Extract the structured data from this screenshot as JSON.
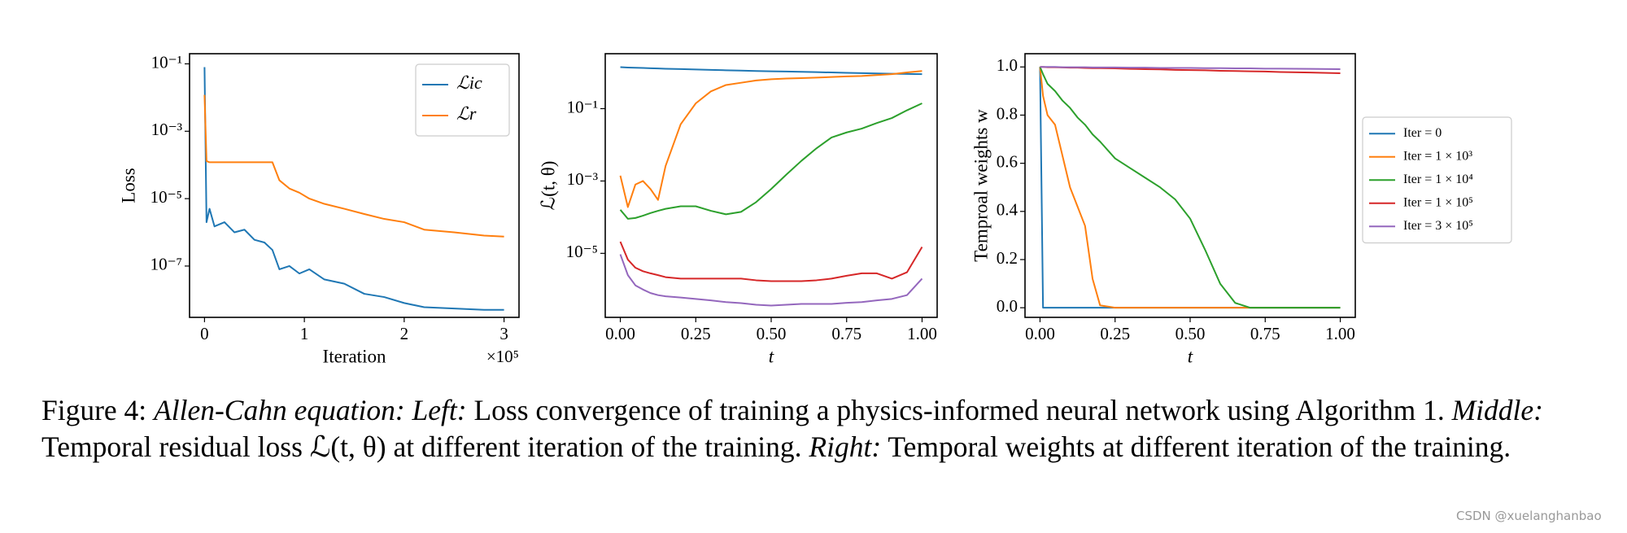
{
  "chart_data": [
    {
      "type": "line",
      "yscale": "log",
      "legend": "upper right",
      "xlabel": "Iteration",
      "ylabel": "Loss",
      "x_offset_label": "×10⁵",
      "x": [
        0,
        0.02,
        0.05,
        0.1,
        0.2,
        0.3,
        0.4,
        0.5,
        0.6,
        0.68,
        0.75,
        0.85,
        0.95,
        1.05,
        1.2,
        1.4,
        1.6,
        1.8,
        2.0,
        2.2,
        2.5,
        2.8,
        3.0
      ],
      "series": [
        {
          "name": "ℒic",
          "color": "#1f77b4",
          "values": [
            0.08,
            2e-06,
            5e-06,
            1.5e-06,
            2e-06,
            1e-06,
            1.2e-06,
            6e-07,
            5e-07,
            3e-07,
            8e-08,
            1e-07,
            6e-08,
            8e-08,
            4e-08,
            3e-08,
            1.5e-08,
            1.2e-08,
            8e-09,
            6e-09,
            5.5e-09,
            5e-09,
            5e-09
          ]
        },
        {
          "name": "ℒr",
          "color": "#ff7f0e",
          "values": [
            0.012,
            0.00013,
            0.00012,
            0.00012,
            0.00012,
            0.00012,
            0.00012,
            0.00012,
            0.00012,
            0.00012,
            3.5e-05,
            2e-05,
            1.5e-05,
            1e-05,
            7e-06,
            5e-06,
            3.5e-06,
            2.5e-06,
            2e-06,
            1.2e-06,
            1e-06,
            8e-07,
            7.5e-07
          ]
        }
      ],
      "xlim": [
        -0.15,
        3.15
      ],
      "ylim": [
        3e-09,
        0.2
      ],
      "xticks": [
        0,
        1,
        2,
        3
      ],
      "yticks": [
        {
          "value": 0.1,
          "label": "10⁻¹"
        },
        {
          "value": 0.001,
          "label": "10⁻³"
        },
        {
          "value": 1e-05,
          "label": "10⁻⁵"
        },
        {
          "value": 1e-07,
          "label": "10⁻⁷"
        }
      ]
    },
    {
      "type": "line",
      "yscale": "log",
      "xlabel": "t",
      "ylabel": "ℒ(t, θ)",
      "x": [
        0,
        0.025,
        0.05,
        0.075,
        0.1,
        0.125,
        0.15,
        0.2,
        0.25,
        0.3,
        0.35,
        0.4,
        0.45,
        0.5,
        0.55,
        0.6,
        0.65,
        0.7,
        0.75,
        0.8,
        0.85,
        0.9,
        0.95,
        1.0
      ],
      "series": [
        {
          "color": "#1f77b4",
          "values": [
            1.4,
            1.37,
            1.35,
            1.33,
            1.31,
            1.29,
            1.27,
            1.24,
            1.21,
            1.18,
            1.15,
            1.13,
            1.1,
            1.08,
            1.06,
            1.04,
            1.02,
            1.0,
            0.98,
            0.96,
            0.94,
            0.92,
            0.91,
            0.9
          ]
        },
        {
          "color": "#ff7f0e",
          "values": [
            0.0014,
            0.00019,
            0.0008,
            0.001,
            0.0006,
            0.0003,
            0.0026,
            0.037,
            0.14,
            0.3,
            0.45,
            0.52,
            0.6,
            0.65,
            0.68,
            0.7,
            0.72,
            0.75,
            0.78,
            0.8,
            0.85,
            0.9,
            1.0,
            1.1
          ]
        },
        {
          "color": "#2ca02c",
          "values": [
            0.00016,
            9e-05,
            9.5e-05,
            0.00011,
            0.00013,
            0.00015,
            0.00017,
            0.0002,
            0.0002,
            0.00015,
            0.00012,
            0.00014,
            0.00026,
            0.0006,
            0.0015,
            0.0036,
            0.008,
            0.016,
            0.022,
            0.028,
            0.04,
            0.055,
            0.09,
            0.14
          ]
        },
        {
          "color": "#d62728",
          "values": [
            2.1e-05,
            6.7e-06,
            4e-06,
            3.2e-06,
            2.8e-06,
            2.5e-06,
            2.2e-06,
            2e-06,
            2e-06,
            2e-06,
            2e-06,
            2e-06,
            1.8e-06,
            1.7e-06,
            1.7e-06,
            1.7e-06,
            1.8e-06,
            2e-06,
            2.4e-06,
            2.8e-06,
            2.8e-06,
            2e-06,
            3e-06,
            1.5e-05
          ]
        },
        {
          "color": "#9467bd",
          "values": [
            9.4e-06,
            2.5e-06,
            1.3e-06,
            1e-06,
            8e-07,
            7e-07,
            6.5e-07,
            6e-07,
            5.5e-07,
            5e-07,
            4.5e-07,
            4.2e-07,
            3.8e-07,
            3.6e-07,
            3.8e-07,
            4e-07,
            4e-07,
            4e-07,
            4.3e-07,
            4.5e-07,
            5e-07,
            5.5e-07,
            7e-07,
            2e-06
          ]
        }
      ],
      "xlim": [
        -0.05,
        1.05
      ],
      "ylim": [
        1.7e-07,
        3.3
      ],
      "xticks": [
        {
          "value": 0,
          "label": "0.00"
        },
        {
          "value": 0.25,
          "label": "0.25"
        },
        {
          "value": 0.5,
          "label": "0.50"
        },
        {
          "value": 0.75,
          "label": "0.75"
        },
        {
          "value": 1,
          "label": "1.00"
        }
      ],
      "yticks": [
        {
          "value": 0.1,
          "label": "10⁻¹"
        },
        {
          "value": 0.001,
          "label": "10⁻³"
        },
        {
          "value": 1e-05,
          "label": "10⁻⁵"
        }
      ]
    },
    {
      "type": "line",
      "legend": "outside right",
      "xlabel": "t",
      "ylabel": "Temproal weights w",
      "x": [
        0,
        0.01,
        0.025,
        0.05,
        0.075,
        0.1,
        0.125,
        0.15,
        0.175,
        0.2,
        0.25,
        0.3,
        0.35,
        0.4,
        0.45,
        0.5,
        0.55,
        0.6,
        0.65,
        0.7,
        0.75,
        0.8,
        0.9,
        1.0
      ],
      "series": [
        {
          "name": "Iter = 0",
          "color": "#1f77b4",
          "values": [
            1,
            0,
            0,
            0,
            0,
            0,
            0,
            0,
            0,
            0,
            0,
            0,
            0,
            0,
            0,
            0,
            0,
            0,
            0,
            0,
            0,
            0,
            0,
            0
          ]
        },
        {
          "name": "Iter = 1 × 10³",
          "color": "#ff7f0e",
          "values": [
            1,
            0.88,
            0.8,
            0.76,
            0.63,
            0.5,
            0.42,
            0.34,
            0.12,
            0.01,
            0,
            0,
            0,
            0,
            0,
            0,
            0,
            0,
            0,
            0,
            0,
            0,
            0,
            0
          ]
        },
        {
          "name": "Iter = 1 × 10⁴",
          "color": "#2ca02c",
          "values": [
            1,
            0.97,
            0.93,
            0.9,
            0.86,
            0.83,
            0.79,
            0.76,
            0.72,
            0.69,
            0.62,
            0.58,
            0.54,
            0.5,
            0.45,
            0.37,
            0.24,
            0.1,
            0.02,
            0,
            0,
            0,
            0,
            0
          ]
        },
        {
          "name": "Iter = 1 × 10⁵",
          "color": "#d62728",
          "values": [
            1,
            1,
            0.999,
            0.999,
            0.998,
            0.997,
            0.997,
            0.996,
            0.995,
            0.995,
            0.994,
            0.992,
            0.991,
            0.99,
            0.988,
            0.987,
            0.986,
            0.984,
            0.983,
            0.982,
            0.981,
            0.979,
            0.977,
            0.974
          ]
        },
        {
          "name": "Iter = 3 × 10⁵",
          "color": "#9467bd",
          "values": [
            1,
            1,
            1,
            1,
            0.999,
            0.999,
            0.999,
            0.999,
            0.998,
            0.998,
            0.998,
            0.997,
            0.997,
            0.996,
            0.996,
            0.996,
            0.995,
            0.995,
            0.994,
            0.994,
            0.993,
            0.993,
            0.992,
            0.991
          ]
        }
      ],
      "xlim": [
        -0.05,
        1.05
      ],
      "ylim": [
        -0.04,
        1.055
      ],
      "xticks": [
        {
          "value": 0,
          "label": "0.00"
        },
        {
          "value": 0.25,
          "label": "0.25"
        },
        {
          "value": 0.5,
          "label": "0.50"
        },
        {
          "value": 0.75,
          "label": "0.75"
        },
        {
          "value": 1,
          "label": "1.00"
        }
      ],
      "yticks": [
        {
          "value": 0,
          "label": "0.0"
        },
        {
          "value": 0.2,
          "label": "0.2"
        },
        {
          "value": 0.4,
          "label": "0.4"
        },
        {
          "value": 0.6,
          "label": "0.6"
        },
        {
          "value": 0.8,
          "label": "0.8"
        },
        {
          "value": 1,
          "label": "1.0"
        }
      ]
    }
  ],
  "caption": [
    {
      "text": "Figure 4: "
    },
    {
      "text": "Allen-Cahn equation: Left:",
      "italic": true
    },
    {
      "text": " Loss convergence of training a physics-informed neural network using Algorithm 1. "
    },
    {
      "text": "Middle:",
      "italic": true
    },
    {
      "text": " Temporal residual loss ℒ(t, θ) at different iteration of the training. "
    },
    {
      "text": "Right:",
      "italic": true
    },
    {
      "text": " Temporal weights at different iteration of the training."
    }
  ],
  "watermark": "CSDN @xuelanghanbao"
}
